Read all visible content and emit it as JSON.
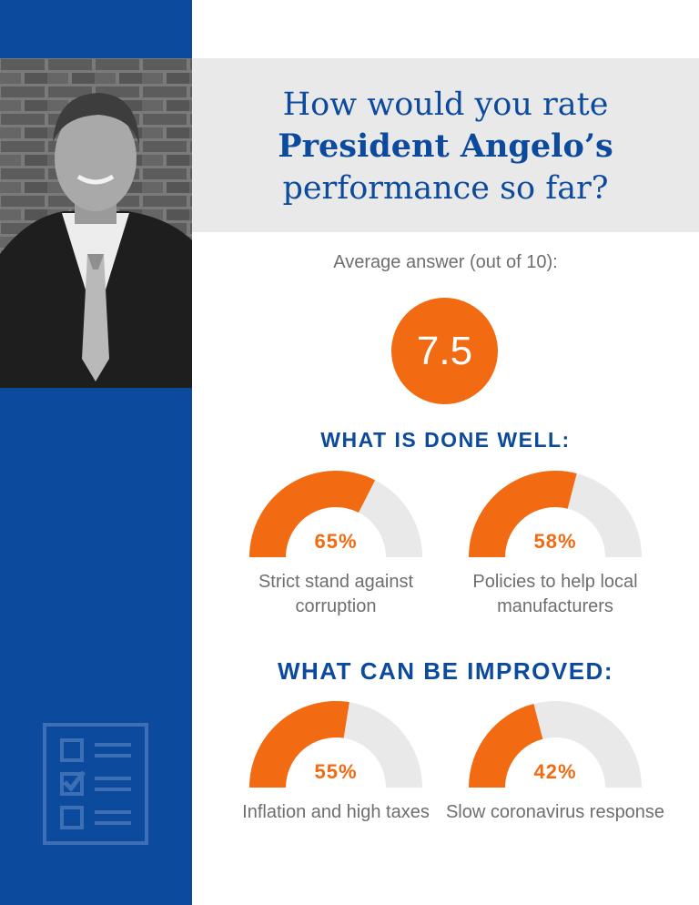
{
  "title": {
    "line1": "How would you rate",
    "line2": "President Angelo’s",
    "line3": "performance so far?"
  },
  "average": {
    "label": "Average answer (out of 10):",
    "value": "7.5"
  },
  "sections": {
    "done_well": "WHAT IS DONE WELL:",
    "improve": "WHAT CAN BE IMPROVED:"
  },
  "colors": {
    "brand_blue": "#0b4a9c",
    "accent_orange": "#f26a11",
    "track_gray": "#e9e9e9",
    "text_gray": "#6e6e6e"
  },
  "chart_data": [
    {
      "type": "pie",
      "group": "WHAT IS DONE WELL:",
      "label": "Strict stand against corruption",
      "value": 65,
      "value_text": "65%"
    },
    {
      "type": "pie",
      "group": "WHAT IS DONE WELL:",
      "label": "Policies to help local manufacturers",
      "value": 58,
      "value_text": "58%"
    },
    {
      "type": "pie",
      "group": "WHAT CAN BE IMPROVED:",
      "label": "Inflation and high taxes",
      "value": 55,
      "value_text": "55%"
    },
    {
      "type": "pie",
      "group": "WHAT CAN BE IMPROVED:",
      "label": "Slow coronavirus response",
      "value": 42,
      "value_text": "42%"
    }
  ]
}
